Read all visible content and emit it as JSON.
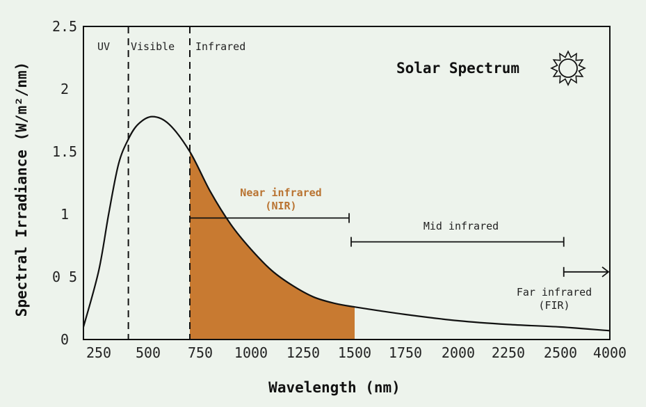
{
  "chart_data": {
    "type": "area",
    "title": "Solar Spectrum",
    "xlabel": "Wavelength (nm)",
    "ylabel": "Spectral Irradiance (W/m²/nm)",
    "x_tick_labels": [
      "250",
      "500",
      "750",
      "1000",
      "1250",
      "1500",
      "1750",
      "2000",
      "2250",
      "2500",
      "4000"
    ],
    "y_tick_labels": [
      "0",
      "0 5",
      "1",
      "1.5",
      "2",
      "2.5"
    ],
    "y_tick_values": [
      0,
      0.5,
      1,
      1.5,
      2,
      2.5
    ],
    "ylim": [
      0,
      2.5
    ],
    "grid": false,
    "series": [
      {
        "values": [
          {
            "x": 200,
            "y": 0.1
          },
          {
            "x": 250,
            "y": 0.55
          },
          {
            "x": 300,
            "y": 1.0
          },
          {
            "x": 350,
            "y": 1.4
          },
          {
            "x": 400,
            "y": 1.6
          },
          {
            "x": 450,
            "y": 1.72
          },
          {
            "x": 520,
            "y": 1.78
          },
          {
            "x": 600,
            "y": 1.72
          },
          {
            "x": 700,
            "y": 1.5
          },
          {
            "x": 800,
            "y": 1.18
          },
          {
            "x": 900,
            "y": 0.92
          },
          {
            "x": 1000,
            "y": 0.72
          },
          {
            "x": 1100,
            "y": 0.55
          },
          {
            "x": 1200,
            "y": 0.43
          },
          {
            "x": 1300,
            "y": 0.34
          },
          {
            "x": 1400,
            "y": 0.29
          },
          {
            "x": 1500,
            "y": 0.26
          },
          {
            "x": 1750,
            "y": 0.2
          },
          {
            "x": 2000,
            "y": 0.15
          },
          {
            "x": 2250,
            "y": 0.12
          },
          {
            "x": 2500,
            "y": 0.1
          },
          {
            "x": 4000,
            "y": 0.07
          }
        ]
      }
    ],
    "boundaries": [
      400,
      700
    ],
    "regions": [
      "UV",
      "Visible",
      "Infrared"
    ],
    "shaded_range": [
      700,
      1500
    ],
    "shaded_label": [
      "Near infrared",
      "(NIR)"
    ],
    "mid_label": "Mid infrared",
    "far_label": [
      "Far infrared",
      "(FIR)"
    ],
    "colors": {
      "curve": "#111111",
      "fill": "#c87a31",
      "nir_text": "#b97331",
      "background": "#edf3ec"
    }
  }
}
